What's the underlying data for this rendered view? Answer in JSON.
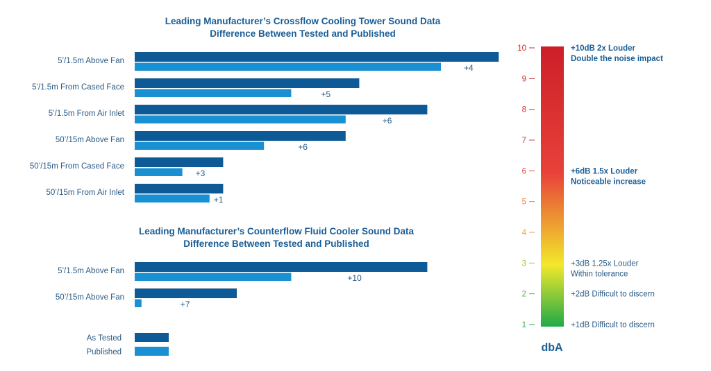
{
  "colors": {
    "tested": "#0d5a96",
    "published": "#1890d2",
    "text": "#2a5a85",
    "title": "#1a5e96"
  },
  "chart_data": [
    {
      "type": "bar",
      "orientation": "horizontal",
      "title_lines": [
        "Leading Manufacturer’s Crossflow Cooling Tower Sound Data",
        "Difference Between Tested and Published"
      ],
      "categories": [
        "5’/1.5m Above Fan",
        "5’/1.5m From Cased Face",
        "5’/1.5m From Air Inlet",
        "50’/15m Above Fan",
        "50’/15m From Cased Face",
        "50’/15m From Air Inlet"
      ],
      "series": [
        {
          "name": "As Tested",
          "values": [
            10.7,
            6.6,
            8.6,
            6.2,
            2.6,
            2.6
          ]
        },
        {
          "name": "Published",
          "values": [
            9.0,
            4.6,
            6.2,
            3.8,
            1.4,
            2.2
          ]
        }
      ],
      "difference_labels": [
        "+4",
        "+5",
        "+6",
        "+6",
        "+3",
        "+1"
      ]
    },
    {
      "type": "bar",
      "orientation": "horizontal",
      "title_lines": [
        "Leading Manufacturer’s Counterflow Fluid Cooler Sound Data",
        "Difference Between Tested and Published"
      ],
      "categories": [
        "5’/1.5m Above Fan",
        "50’/15m Above Fan"
      ],
      "series": [
        {
          "name": "As Tested",
          "values": [
            8.6,
            3.0
          ]
        },
        {
          "name": "Published",
          "values": [
            4.6,
            0.2
          ]
        }
      ],
      "difference_labels": [
        "+10",
        "+7"
      ]
    }
  ],
  "legend": [
    {
      "label": "As Tested",
      "color": "#0d5a96"
    },
    {
      "label": "Published",
      "color": "#1890d2"
    }
  ],
  "scale": {
    "unit": "dbA",
    "ticks": [
      "1",
      "2",
      "3",
      "4",
      "5",
      "6",
      "7",
      "8",
      "9",
      "10"
    ],
    "tick_colors": [
      "#23a94a",
      "#4fb748",
      "#9fc73a",
      "#f0a23c",
      "#f07b3a",
      "#e5483a",
      "#d93a3a",
      "#d63535",
      "#d03030",
      "#cc2c2c"
    ],
    "gradient": [
      "#1faa48",
      "#f2e82a",
      "#e8413a",
      "#cc1f28"
    ],
    "annotations": [
      {
        "at": 10,
        "lines": [
          "+10dB  2x Louder",
          "Double the noise impact"
        ],
        "bold": true
      },
      {
        "at": 6,
        "lines": [
          "+6dB  1.5x Louder",
          "Noticeable increase"
        ],
        "bold": true
      },
      {
        "at": 3,
        "lines": [
          "+3dB  1.25x Louder",
          "Within tolerance"
        ],
        "bold": false
      },
      {
        "at": 2,
        "lines": [
          "+2dB Difficult to discern"
        ],
        "bold": false
      },
      {
        "at": 1,
        "lines": [
          "+1dB Difficult to discern"
        ],
        "bold": false
      }
    ]
  }
}
